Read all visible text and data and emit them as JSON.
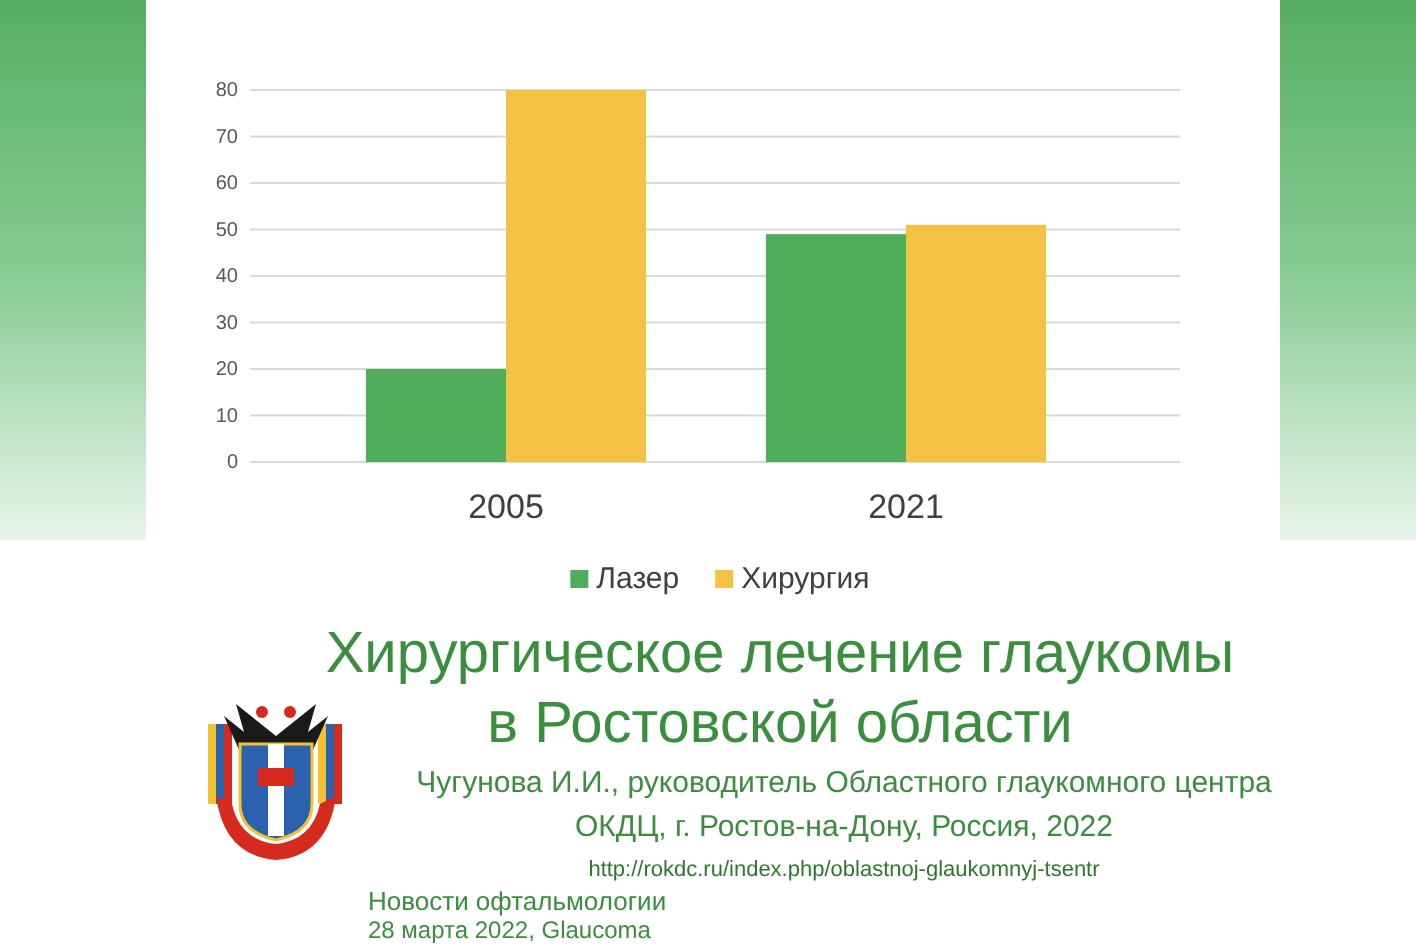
{
  "chart_data": {
    "type": "bar",
    "title": "Хирургическое лечение глаукомы в Ростовской области",
    "categories": [
      "2005",
      "2021"
    ],
    "series": [
      {
        "name": "Лазер",
        "color": "#50ad5b",
        "values": [
          20,
          49
        ]
      },
      {
        "name": "Хирургия",
        "color": "#f4c242",
        "values": [
          80,
          51
        ]
      }
    ],
    "ylim": [
      0,
      80
    ],
    "yticks": [
      0,
      10,
      20,
      30,
      40,
      50,
      60,
      70,
      80
    ],
    "grid": "y",
    "legend": "bottom",
    "annotations": [
      "Чугунова И.И., руководитель Областного глаукомного центра",
      "ОКДЦ, г. Ростов-на-Дону, Россия, 2022",
      "http://rokdc.ru/index.php/oblastnoj-glaukomnyj-tsentr",
      "Новости офтальмологии",
      "28 марта 2022, Glaucoma"
    ]
  }
}
